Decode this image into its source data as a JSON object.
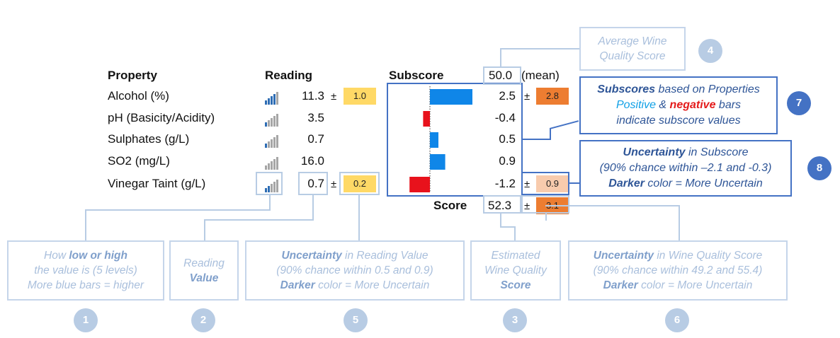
{
  "table": {
    "property_header": "Property",
    "reading_header": "Reading",
    "subscore_header": "Subscore",
    "mean_value": "50.0",
    "mean_label": "(mean)",
    "score_label": "Score",
    "score_value": "52.3",
    "score_uncertainty": "3.1",
    "pm": "±",
    "rows": [
      {
        "label": "Alcohol (%)",
        "reading": "11.3",
        "reading_unc": "1.0",
        "level": 4,
        "subscore": "2.5",
        "subscore_unc": "2.8"
      },
      {
        "label": "pH (Basicity/Acidity)",
        "reading": "3.5",
        "reading_unc": "",
        "level": 1,
        "subscore": "-0.4",
        "subscore_unc": ""
      },
      {
        "label": "Sulphates (g/L)",
        "reading": "0.7",
        "reading_unc": "",
        "level": 1,
        "subscore": "0.5",
        "subscore_unc": ""
      },
      {
        "label": "SO2 (mg/L)",
        "reading": "16.0",
        "reading_unc": "",
        "level": 0,
        "subscore": "0.9",
        "subscore_unc": ""
      },
      {
        "label": "Vinegar Taint (g/L)",
        "reading": "0.7",
        "reading_unc": "0.2",
        "level": 2,
        "subscore": "-1.2",
        "subscore_unc": "0.9"
      }
    ]
  },
  "colors": {
    "positive_bar": "#0f86e8",
    "negative_bar": "#e8121c",
    "unc_light": "#ffd966",
    "unc_peach": "#f8cbad",
    "unc_orange": "#ed7d31",
    "bar_on": "#2e6db4",
    "bar_off": "#a6a6a6"
  },
  "annotations": {
    "a1": {
      "num": "1",
      "line1_pre": "How ",
      "line1_bold": "low or high",
      "line2": "the value is (5 levels)",
      "line3_pre": "More blue bars = higher"
    },
    "a2": {
      "num": "2",
      "line1": "Reading",
      "line2_bold": "Value"
    },
    "a3": {
      "num": "3",
      "line1": "Estimated",
      "line2": "Wine Quality",
      "line3_bold": "Score"
    },
    "a4": {
      "num": "4",
      "line1": "Average Wine",
      "line2": "Quality Score"
    },
    "a5": {
      "num": "5",
      "line1_bold": "Uncertainty",
      "line1_rest": " in Reading Value",
      "line2": "(90% chance within 0.5 and 0.9)",
      "line3_bold": "Darker",
      "line3_rest": " color = More Uncertain"
    },
    "a6": {
      "num": "6",
      "line1_bold": "Uncertainty",
      "line1_rest": " in Wine Quality Score",
      "line2": "(90% chance within 49.2 and 55.4)",
      "line3_bold": "Darker",
      "line3_rest": " color = More Uncertain"
    },
    "a7": {
      "num": "7",
      "line1_bold": "Subscores",
      "line1_rest": " based on Properties",
      "line2_pos": "Positive",
      "line2_amp": " & ",
      "line2_neg": "negative",
      "line2_rest": " bars",
      "line3": "indicate subscore values"
    },
    "a8": {
      "num": "8",
      "line1_bold": "Uncertainty",
      "line1_rest": " in Subscore",
      "line2": "(90% chance within –2.1 and -0.3)",
      "line3_bold": "Darker",
      "line3_rest": " color = More Uncertain"
    }
  }
}
